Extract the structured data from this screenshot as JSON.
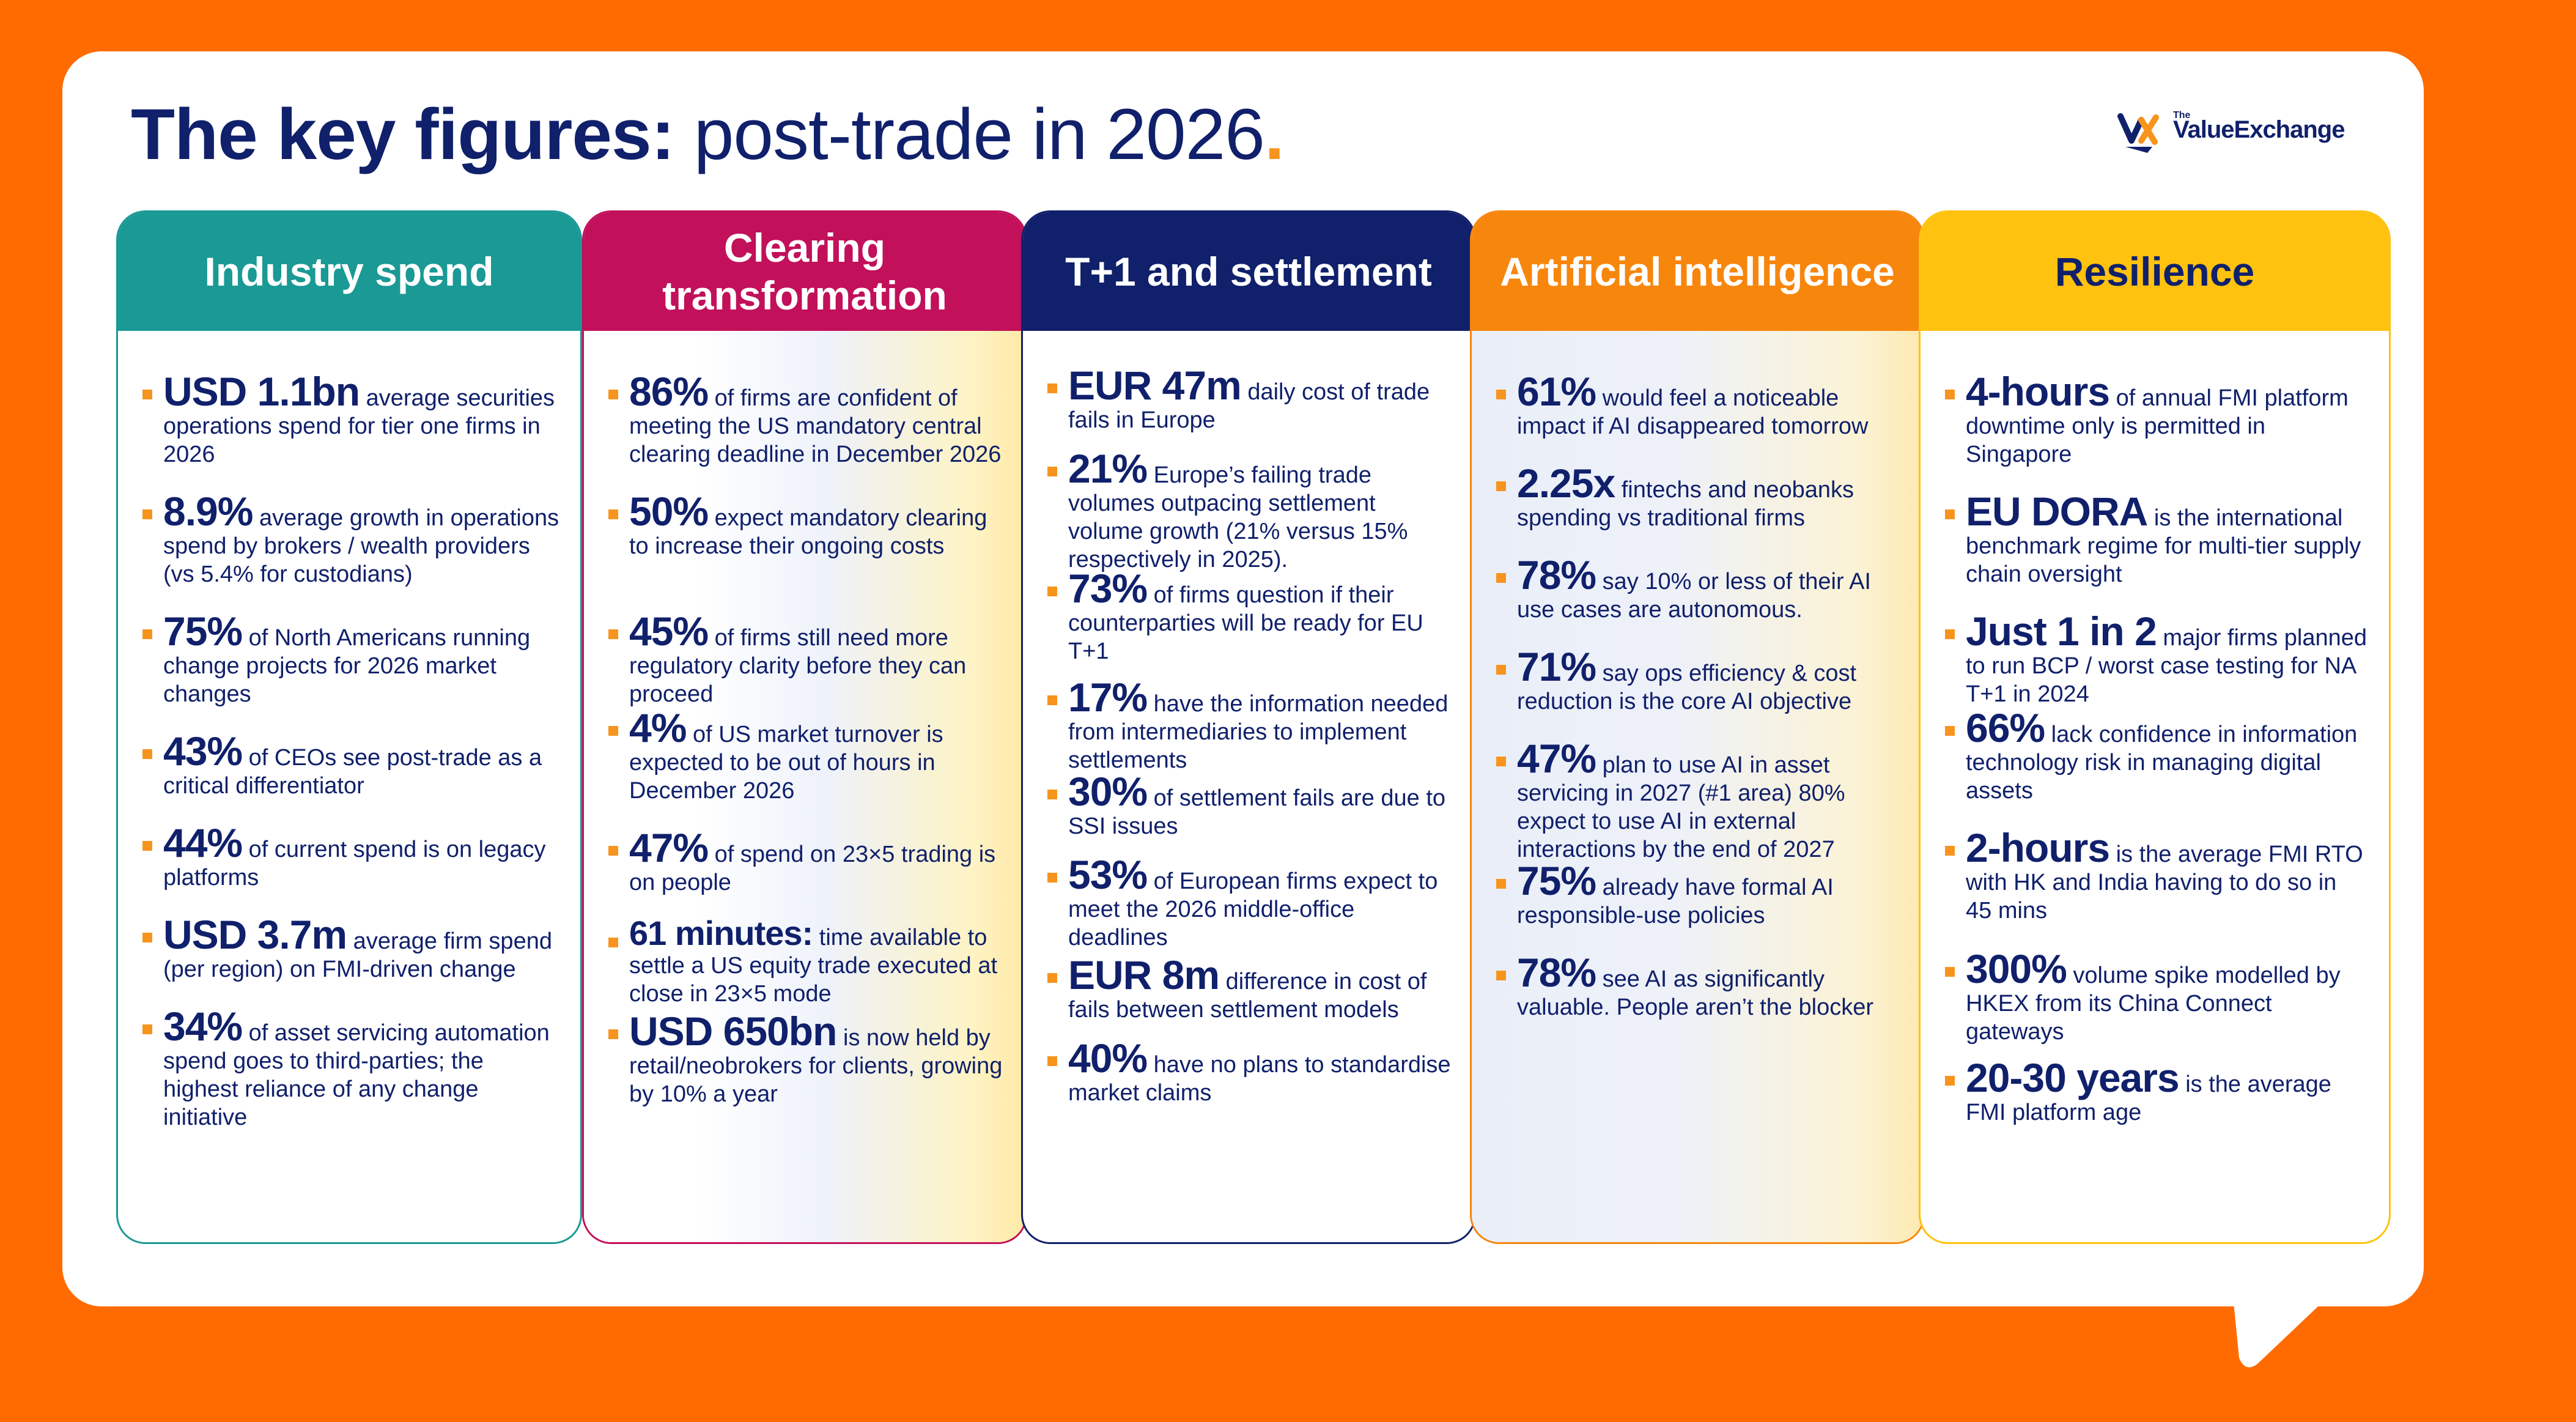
{
  "title": {
    "bold": "The key figures:",
    "rest": " post-trade in 2026",
    "dot": "."
  },
  "logo": {
    "the": "The",
    "name": "ValueExchange"
  },
  "colors": {
    "background": "#FF6B00",
    "navy": "#10206B",
    "teal": "#1A9995",
    "magenta": "#C2105A",
    "ai_orange": "#F7860D",
    "yellow": "#FFC20E",
    "bullet": "#F7941D"
  },
  "columns": [
    {
      "title": "Industry spend",
      "items": [
        {
          "stat": "USD 1.1bn",
          "text": " average securities operations spend for tier one firms in 2026"
        },
        {
          "stat": "8.9%",
          "text": " average growth in operations spend by brokers / wealth providers (vs 5.4% for custodians)"
        },
        {
          "stat": "75%",
          "text": " of North Americans running change projects for 2026 market changes"
        },
        {
          "stat": "43%",
          "text": " of CEOs see post-trade as a critical differentiator"
        },
        {
          "stat": "44%",
          "text": " of current spend is on legacy platforms"
        },
        {
          "stat": "USD 3.7m",
          "text": " average firm spend (per region) on FMI-driven change"
        },
        {
          "stat": "34%",
          "text": " of asset servicing automation spend goes to third-parties; the highest reliance of any change initiative"
        }
      ]
    },
    {
      "title": "Clearing transformation",
      "items": [
        {
          "stat": "86%",
          "text": " of firms are confident of meeting the US mandatory central clearing deadline in December 2026"
        },
        {
          "stat": "50%",
          "text": " expect mandatory clearing to increase their ongoing costs"
        },
        {
          "stat": "45%",
          "text": " of firms still need more regulatory clarity before they can proceed"
        },
        {
          "stat": "4%",
          "text": " of US market turnover is expected to be out of hours in December 2026"
        },
        {
          "stat": "47%",
          "text": " of spend on 23×5 trading is on people"
        },
        {
          "stat": "61 minutes:",
          "text": " time available to settle a US equity trade executed at close in 23×5 mode"
        },
        {
          "stat": "USD 650bn",
          "text": " is now held by retail/neobrokers for clients, growing by 10% a year"
        }
      ]
    },
    {
      "title": "T+1 and settlement",
      "items": [
        {
          "stat": "EUR 47m",
          "text": " daily cost of trade fails in Europe"
        },
        {
          "stat": "21%",
          "text": " Europe’s failing trade volumes  outpacing settlement volume growth (21% versus 15% respectively in 2025)."
        },
        {
          "stat": "73%",
          "text": " of firms question if their counterparties will be ready for EU T+1"
        },
        {
          "stat": "17%",
          "text": " have the information needed from intermediaries to implement settlements"
        },
        {
          "stat": "30%",
          "text": " of settlement fails are due to SSI issues"
        },
        {
          "stat": "53%",
          "text": " of European firms expect to meet the 2026 middle-office deadlines"
        },
        {
          "stat": "EUR 8m",
          "text": " difference in cost of fails between settlement models"
        },
        {
          "stat": "40%",
          "text": " have no plans to standardise market claims"
        }
      ]
    },
    {
      "title": "Artificial intelligence",
      "items": [
        {
          "stat": "61%",
          "text": " would feel a noticeable impact if AI disappeared tomorrow"
        },
        {
          "stat": "2.25x",
          "text": " fintechs and neobanks spending vs traditional firms"
        },
        {
          "stat": "78%",
          "text": " say 10% or less of their AI use cases are autonomous."
        },
        {
          "stat": "71%",
          "text": " say ops efficiency & cost reduction is the core AI objective"
        },
        {
          "stat": "47%",
          "text": " plan to use AI in asset servicing in 2027 (#1 area) 80% expect to use AI in external interactions by the end of 2027"
        },
        {
          "stat": "75%",
          "text": " already have formal AI responsible-use policies"
        },
        {
          "stat": "78%",
          "text": " see AI as significantly valuable. People aren’t the blocker"
        }
      ]
    },
    {
      "title": "Resilience",
      "items": [
        {
          "stat": "4-hours",
          "text": " of annual FMI platform downtime only  is permitted in Singapore"
        },
        {
          "stat": "EU DORA",
          "text": " is the international benchmark regime for multi-tier supply chain oversight"
        },
        {
          "stat": "Just 1 in 2",
          "text": " major firms planned to run BCP / worst case testing for NA T+1 in 2024"
        },
        {
          "stat": "66%",
          "text": " lack confidence in information technology risk in managing digital assets"
        },
        {
          "stat": "2-hours",
          "text": " is the average FMI RTO with HK and India having to do so in 45 mins"
        },
        {
          "stat": "300%",
          "text": " volume spike modelled by HKEX from its China Connect gateways"
        },
        {
          "stat": "20-30 years",
          "text": " is the average FMI platform age"
        }
      ]
    }
  ]
}
